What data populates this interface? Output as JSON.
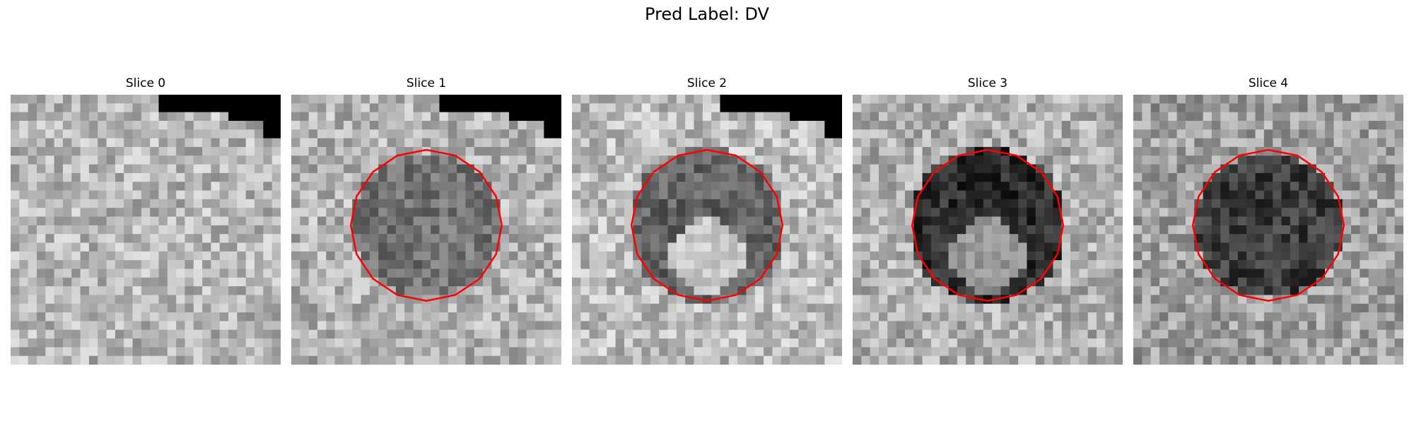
{
  "figure": {
    "title": "Pred Label: DV"
  },
  "slices": [
    {
      "title": "Slice 0",
      "base": 182,
      "disk": 0,
      "ring": 0,
      "inner": 0,
      "black_corner": true,
      "contour": false,
      "seed": 11
    },
    {
      "title": "Slice 1",
      "base": 178,
      "disk": 115,
      "ring": 0,
      "inner": 0,
      "black_corner": true,
      "contour": true,
      "seed": 23
    },
    {
      "title": "Slice 2",
      "base": 188,
      "disk": 0,
      "ring": 100,
      "inner": 200,
      "black_corner": true,
      "contour": true,
      "seed": 37
    },
    {
      "title": "Slice 3",
      "base": 175,
      "disk": 0,
      "ring": 45,
      "inner": 150,
      "black_corner": false,
      "contour": true,
      "seed": 51
    },
    {
      "title": "Slice 4",
      "base": 160,
      "disk": 60,
      "ring": 0,
      "inner": 0,
      "black_corner": false,
      "contour": true,
      "seed": 67
    }
  ],
  "contour_color": "#ff0000"
}
